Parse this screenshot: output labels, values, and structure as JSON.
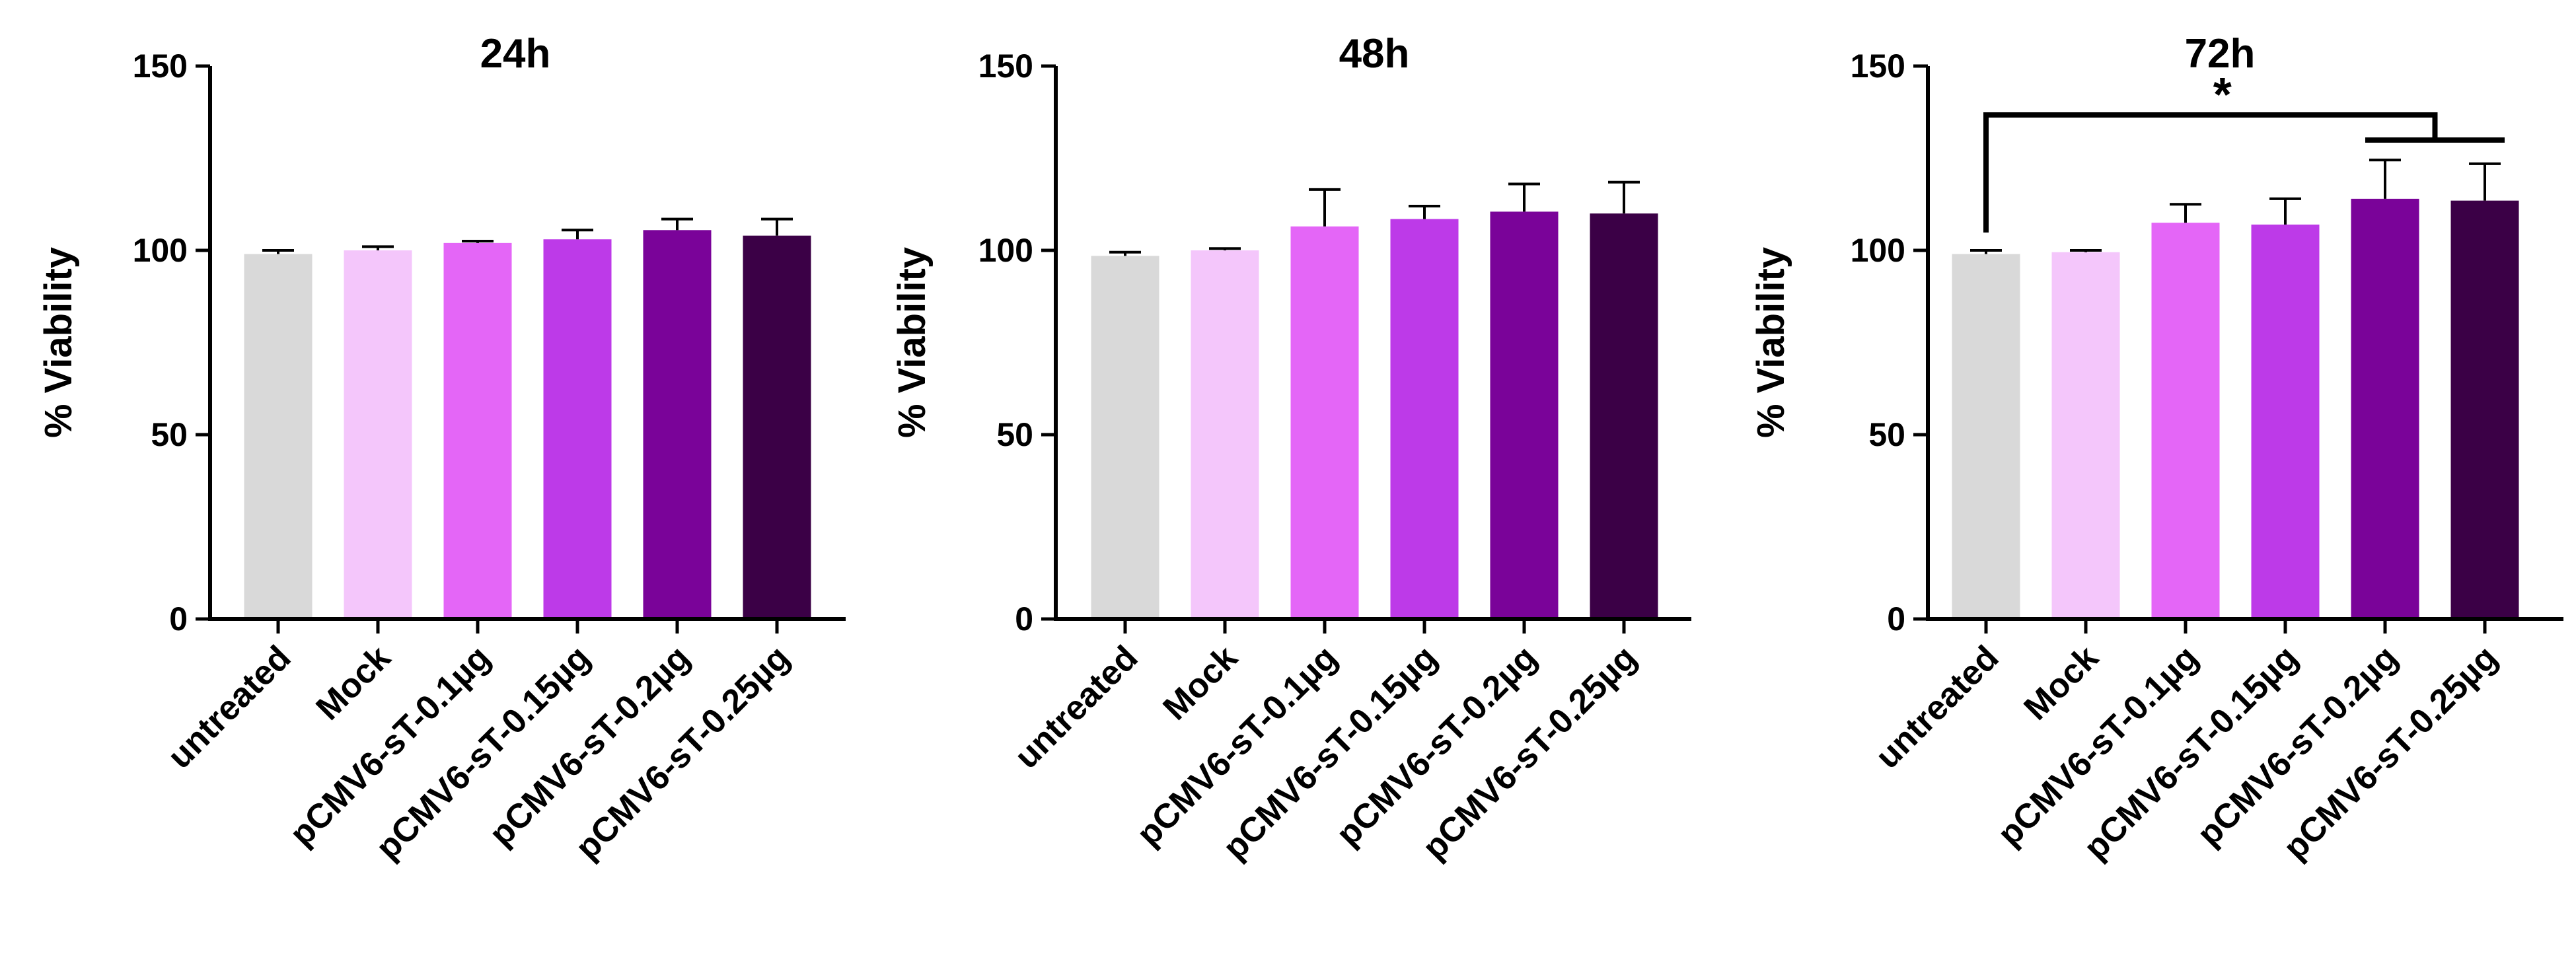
{
  "chart_data": [
    {
      "type": "bar",
      "title": "24h",
      "ylabel": "% Viability",
      "xlabel": "",
      "ylim": [
        0,
        150
      ],
      "yticks": [
        0,
        50,
        100,
        150
      ],
      "categories": [
        "untreated",
        "Mock",
        "pCMV6-sT-0.1µg",
        "pCMV6-sT-0.15µg",
        "pCMV6-sT-0.2µg",
        "pCMV6-sT-0.25µg"
      ],
      "values": [
        99,
        100,
        102,
        103,
        105.5,
        104
      ],
      "error": [
        1,
        1,
        0.5,
        2.5,
        3,
        4.5
      ],
      "colors": [
        "#d9d9d9",
        "#f4c6fb",
        "#e466f7",
        "#bd3ae8",
        "#7a0399",
        "#3b0046"
      ],
      "annotations": []
    },
    {
      "type": "bar",
      "title": "48h",
      "ylabel": "% Viability",
      "xlabel": "",
      "ylim": [
        0,
        150
      ],
      "yticks": [
        0,
        50,
        100,
        150
      ],
      "categories": [
        "untreated",
        "Mock",
        "pCMV6-sT-0.1µg",
        "pCMV6-sT-0.15µg",
        "pCMV6-sT-0.2µg",
        "pCMV6-sT-0.25µg"
      ],
      "values": [
        98.5,
        100,
        106.5,
        108.5,
        110.5,
        110
      ],
      "error": [
        1,
        0.5,
        10,
        3.5,
        7.5,
        8.5
      ],
      "colors": [
        "#d9d9d9",
        "#f4c6fb",
        "#e466f7",
        "#bd3ae8",
        "#7a0399",
        "#3b0046"
      ],
      "annotations": []
    },
    {
      "type": "bar",
      "title": "72h",
      "ylabel": "% Viability",
      "xlabel": "",
      "ylim": [
        0,
        150
      ],
      "yticks": [
        0,
        50,
        100,
        150
      ],
      "categories": [
        "untreated",
        "Mock",
        "pCMV6-sT-0.1µg",
        "pCMV6-sT-0.15µg",
        "pCMV6-sT-0.2µg",
        "pCMV6-sT-0.25µg"
      ],
      "values": [
        99,
        99.5,
        107.5,
        107,
        114,
        113.5
      ],
      "error": [
        1,
        0.5,
        5,
        7,
        10.5,
        10
      ],
      "colors": [
        "#d9d9d9",
        "#f4c6fb",
        "#e466f7",
        "#bd3ae8",
        "#7a0399",
        "#3b0046"
      ],
      "annotations": [
        {
          "text": "*",
          "from_category": 0,
          "to_categories": [
            4,
            5
          ]
        }
      ]
    }
  ]
}
